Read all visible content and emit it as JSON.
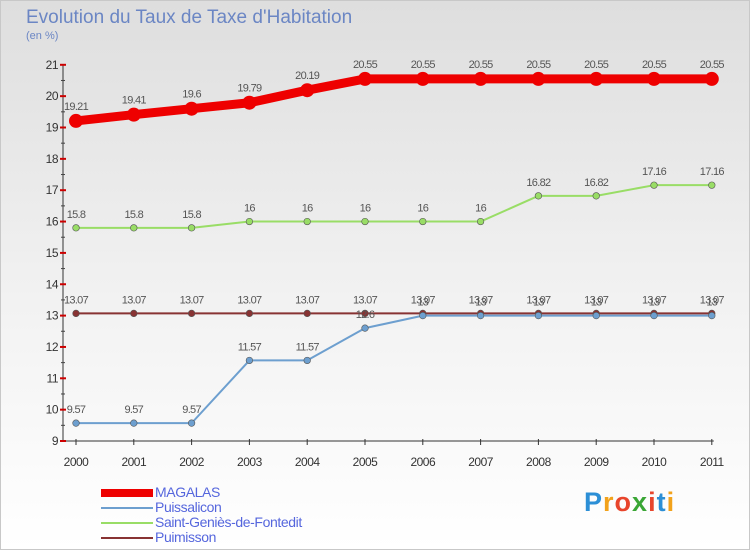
{
  "title": "Evolution du Taux de Taxe d'Habitation",
  "unit": "(en %)",
  "brand": {
    "text": "Proxiti",
    "letter_colors": [
      "#2c8fd6",
      "#f2a21b",
      "#e8452c",
      "#3aa635",
      "#e8452c",
      "#2c8fd6",
      "#f2a21b"
    ]
  },
  "chart_data": {
    "type": "line",
    "title": "Evolution du Taux de Taxe d'Habitation",
    "ylabel": "(en %)",
    "x": [
      "2000",
      "2001",
      "2002",
      "2003",
      "2004",
      "2005",
      "2006",
      "2007",
      "2008",
      "2009",
      "2010",
      "2011"
    ],
    "y_ticks": [
      "9",
      "10",
      "11",
      "12",
      "13",
      "14",
      "15",
      "16",
      "17",
      "18",
      "19",
      "20",
      "21"
    ],
    "ylim": [
      9,
      21
    ],
    "grid": false,
    "legend_position": "bottom-left",
    "series": [
      {
        "name": "MAGALAS",
        "color": "#ee0000",
        "values": [
          19.21,
          19.41,
          19.6,
          19.79,
          20.19,
          20.55,
          20.55,
          20.55,
          20.55,
          20.55,
          20.55,
          20.55
        ],
        "labels": [
          "19.21",
          "19.41",
          "19.6",
          "19.79",
          "20.19",
          "20.55",
          "20.55",
          "20.55",
          "20.55",
          "20.55",
          "20.55",
          "20.55"
        ]
      },
      {
        "name": "Puissalicon",
        "color": "#6d9fcf",
        "values": [
          9.57,
          9.57,
          9.57,
          11.57,
          11.57,
          12.6,
          13,
          13,
          13,
          13,
          13,
          13
        ],
        "labels": [
          "9.57",
          "9.57",
          "9.57",
          "11.57",
          "11.57",
          "12.6",
          "13",
          "13",
          "13",
          "13",
          "13",
          "13"
        ]
      },
      {
        "name": "Saint-Geniès-de-Fontedit",
        "color": "#99dd66",
        "values": [
          15.8,
          15.8,
          15.8,
          16,
          16,
          16,
          16,
          16,
          16.82,
          16.82,
          17.16,
          17.16
        ],
        "labels": [
          "15.8",
          "15.8",
          "15.8",
          "16",
          "16",
          "16",
          "16",
          "16",
          "16.82",
          "16.82",
          "17.16",
          "17.16"
        ]
      },
      {
        "name": "Puimisson",
        "color": "#883333",
        "values": [
          13.07,
          13.07,
          13.07,
          13.07,
          13.07,
          13.07,
          13.07,
          13.07,
          13.07,
          13.07,
          13.07,
          13.07
        ],
        "labels": [
          "13.07",
          "13.07",
          "13.07",
          "13.07",
          "13.07",
          "13.07",
          "13.07",
          "13.07",
          "13.07",
          "13.07",
          "13.07",
          "13.07"
        ]
      }
    ]
  }
}
